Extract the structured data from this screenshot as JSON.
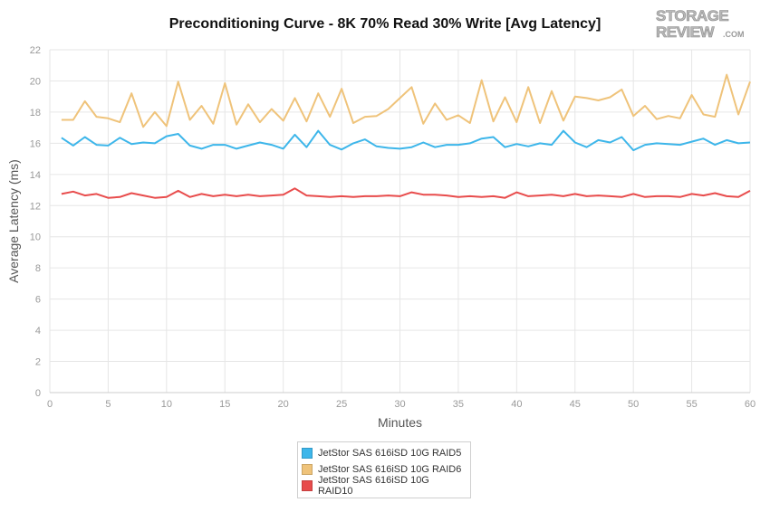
{
  "colors": {
    "raid5": "#3db6ea",
    "raid6": "#efc37a",
    "raid10": "#e84c4c",
    "grid": "#e6e6e6",
    "axis_text": "#999999"
  },
  "logo": {
    "line1": "STORAGE",
    "line2": "REVIEW.COM"
  },
  "chart_data": {
    "type": "line",
    "title": "Preconditioning Curve - 8K 70% Read 30% Write [Avg Latency]",
    "xlabel": "Minutes",
    "ylabel": "Average Latency (ms)",
    "xlim": [
      0,
      60
    ],
    "ylim": [
      0,
      22
    ],
    "xticks": [
      0,
      5,
      10,
      15,
      20,
      25,
      30,
      35,
      40,
      45,
      50,
      55,
      60
    ],
    "yticks": [
      0,
      2,
      4,
      6,
      8,
      10,
      12,
      14,
      16,
      18,
      20,
      22
    ],
    "grid": true,
    "legend_position": "bottom-center",
    "x": [
      1,
      2,
      3,
      4,
      5,
      6,
      7,
      8,
      9,
      10,
      11,
      12,
      13,
      14,
      15,
      16,
      17,
      18,
      19,
      20,
      21,
      22,
      23,
      24,
      25,
      26,
      27,
      28,
      29,
      30,
      31,
      32,
      33,
      34,
      35,
      36,
      37,
      38,
      39,
      40,
      41,
      42,
      43,
      44,
      45,
      46,
      47,
      48,
      49,
      50,
      51,
      52,
      53,
      54,
      55,
      56,
      57,
      58,
      59,
      60
    ],
    "series": [
      {
        "name": "JetStor SAS 616iSD 10G RAID5",
        "color": "#3db6ea",
        "values": [
          16.35,
          15.85,
          16.4,
          15.9,
          15.85,
          16.35,
          15.95,
          16.05,
          16.0,
          16.45,
          16.6,
          15.85,
          15.65,
          15.9,
          15.9,
          15.65,
          15.85,
          16.05,
          15.9,
          15.65,
          16.55,
          15.75,
          16.8,
          15.9,
          15.6,
          16.0,
          16.25,
          15.8,
          15.7,
          15.65,
          15.75,
          16.05,
          15.75,
          15.9,
          15.9,
          16.0,
          16.3,
          16.4,
          15.75,
          15.95,
          15.8,
          16.0,
          15.9,
          16.8,
          16.05,
          15.75,
          16.2,
          16.05,
          16.4,
          15.55,
          15.9,
          16.0,
          15.95,
          15.9,
          16.1,
          16.3,
          15.9,
          16.2,
          16.0,
          16.05
        ]
      },
      {
        "name": "JetStor SAS 616iSD 10G RAID6",
        "color": "#efc37a",
        "values": [
          17.5,
          17.5,
          18.7,
          17.7,
          17.6,
          17.35,
          19.2,
          17.05,
          18.0,
          17.1,
          19.95,
          17.5,
          18.4,
          17.25,
          19.85,
          17.2,
          18.5,
          17.35,
          18.2,
          17.45,
          18.9,
          17.4,
          19.2,
          17.7,
          19.5,
          17.3,
          17.7,
          17.75,
          18.2,
          18.9,
          19.6,
          17.25,
          18.55,
          17.5,
          17.8,
          17.3,
          20.05,
          17.4,
          18.95,
          17.35,
          19.6,
          17.3,
          19.35,
          17.45,
          19.0,
          18.9,
          18.75,
          18.95,
          19.45,
          17.75,
          18.4,
          17.55,
          17.75,
          17.6,
          19.1,
          17.85,
          17.7,
          20.4,
          17.85,
          19.95
        ]
      },
      {
        "name": "JetStor SAS 616iSD 10G RAID10",
        "color": "#e84c4c",
        "values": [
          12.75,
          12.9,
          12.65,
          12.75,
          12.5,
          12.55,
          12.8,
          12.65,
          12.5,
          12.55,
          12.95,
          12.55,
          12.75,
          12.6,
          12.7,
          12.6,
          12.7,
          12.6,
          12.65,
          12.7,
          13.1,
          12.65,
          12.6,
          12.55,
          12.6,
          12.55,
          12.6,
          12.6,
          12.65,
          12.6,
          12.85,
          12.7,
          12.7,
          12.65,
          12.55,
          12.6,
          12.55,
          12.6,
          12.5,
          12.85,
          12.6,
          12.65,
          12.7,
          12.6,
          12.75,
          12.6,
          12.65,
          12.6,
          12.55,
          12.75,
          12.55,
          12.6,
          12.6,
          12.55,
          12.75,
          12.65,
          12.8,
          12.6,
          12.55,
          12.95
        ]
      }
    ]
  }
}
